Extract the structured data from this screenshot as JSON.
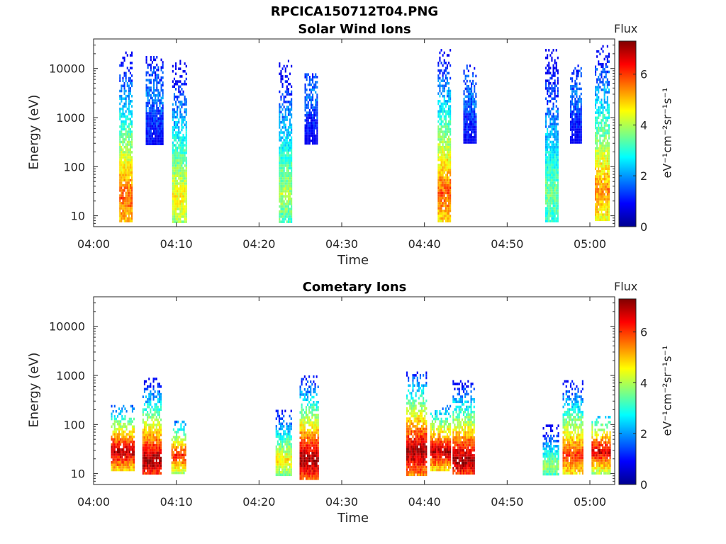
{
  "page": {
    "title": "RPCICA150712T04.PNG"
  },
  "colorbar": {
    "title": "Flux",
    "unit_label": "eV⁻¹cm⁻²sr⁻¹s⁻¹",
    "ticks": [
      0,
      2,
      4,
      6
    ],
    "range": [
      0,
      7.3
    ]
  },
  "chart_data": [
    {
      "type": "heatmap",
      "title": "Solar Wind Ions",
      "xlabel": "Time",
      "ylabel": "Energy (eV)",
      "x_ticks": [
        "04:00",
        "04:10",
        "04:20",
        "04:30",
        "04:40",
        "04:50",
        "05:00"
      ],
      "y_ticks": [
        "10",
        "100",
        "1000",
        "10000"
      ],
      "y_scale": "log",
      "ylim": [
        6,
        40000
      ],
      "xlim_minutes": [
        0,
        63
      ],
      "bursts": [
        {
          "start_min": 3.1,
          "end_min": 4.7,
          "emin": 8,
          "emax": 25000,
          "peak_energy": 25,
          "peak_flux": 5.8
        },
        {
          "start_min": 6.3,
          "end_min": 8.3,
          "emin": 300,
          "emax": 18000,
          "peak_energy": 3000,
          "peak_flux": 1.8
        },
        {
          "start_min": 9.5,
          "end_min": 11.3,
          "emin": 8,
          "emax": 15000,
          "peak_energy": 25,
          "peak_flux": 4.6
        },
        {
          "start_min": 22.4,
          "end_min": 23.9,
          "emin": 8,
          "emax": 15000,
          "peak_energy": 30,
          "peak_flux": 4.0
        },
        {
          "start_min": 25.5,
          "end_min": 27.0,
          "emin": 300,
          "emax": 8000,
          "peak_energy": 3000,
          "peak_flux": 1.8
        },
        {
          "start_min": 41.6,
          "end_min": 43.2,
          "emin": 8,
          "emax": 25000,
          "peak_energy": 30,
          "peak_flux": 5.8
        },
        {
          "start_min": 44.7,
          "end_min": 46.2,
          "emin": 300,
          "emax": 12000,
          "peak_energy": 3000,
          "peak_flux": 1.8
        },
        {
          "start_min": 54.6,
          "end_min": 56.1,
          "emin": 8,
          "emax": 25000,
          "peak_energy": 30,
          "peak_flux": 3.6
        },
        {
          "start_min": 57.6,
          "end_min": 59.0,
          "emin": 300,
          "emax": 12000,
          "peak_energy": 3000,
          "peak_flux": 1.8
        },
        {
          "start_min": 60.6,
          "end_min": 62.3,
          "emin": 8,
          "emax": 30000,
          "peak_energy": 35,
          "peak_flux": 5.4
        }
      ]
    },
    {
      "type": "heatmap",
      "title": "Cometary Ions",
      "xlabel": "Time",
      "ylabel": "Energy (eV)",
      "x_ticks": [
        "04:00",
        "04:10",
        "04:20",
        "04:30",
        "04:40",
        "04:50",
        "05:00"
      ],
      "y_ticks": [
        "10",
        "100",
        "1000",
        "10000"
      ],
      "y_scale": "log",
      "ylim": [
        6,
        40000
      ],
      "xlim_minutes": [
        0,
        63
      ],
      "bursts": [
        {
          "start_min": 2.1,
          "end_min": 4.9,
          "emin": 12,
          "emax": 250,
          "peak_energy": 30,
          "peak_flux": 7.0
        },
        {
          "start_min": 5.9,
          "end_min": 8.1,
          "emin": 10,
          "emax": 900,
          "peak_energy": 20,
          "peak_flux": 7.2
        },
        {
          "start_min": 9.4,
          "end_min": 11.1,
          "emin": 10,
          "emax": 120,
          "peak_energy": 25,
          "peak_flux": 6.2
        },
        {
          "start_min": 22.0,
          "end_min": 23.9,
          "emin": 10,
          "emax": 200,
          "peak_energy": 20,
          "peak_flux": 4.8
        },
        {
          "start_min": 24.9,
          "end_min": 27.1,
          "emin": 8,
          "emax": 1000,
          "peak_energy": 20,
          "peak_flux": 7.2
        },
        {
          "start_min": 37.8,
          "end_min": 40.3,
          "emin": 10,
          "emax": 1200,
          "peak_energy": 30,
          "peak_flux": 7.2
        },
        {
          "start_min": 40.7,
          "end_min": 43.1,
          "emin": 12,
          "emax": 250,
          "peak_energy": 30,
          "peak_flux": 7.0
        },
        {
          "start_min": 43.4,
          "end_min": 46.1,
          "emin": 10,
          "emax": 800,
          "peak_energy": 20,
          "peak_flux": 7.2
        },
        {
          "start_min": 54.3,
          "end_min": 56.2,
          "emin": 10,
          "emax": 100,
          "peak_energy": 15,
          "peak_flux": 4.0
        },
        {
          "start_min": 56.7,
          "end_min": 59.1,
          "emin": 10,
          "emax": 800,
          "peak_energy": 25,
          "peak_flux": 6.0
        },
        {
          "start_min": 60.2,
          "end_min": 62.4,
          "emin": 10,
          "emax": 150,
          "peak_energy": 30,
          "peak_flux": 6.8
        }
      ]
    }
  ]
}
